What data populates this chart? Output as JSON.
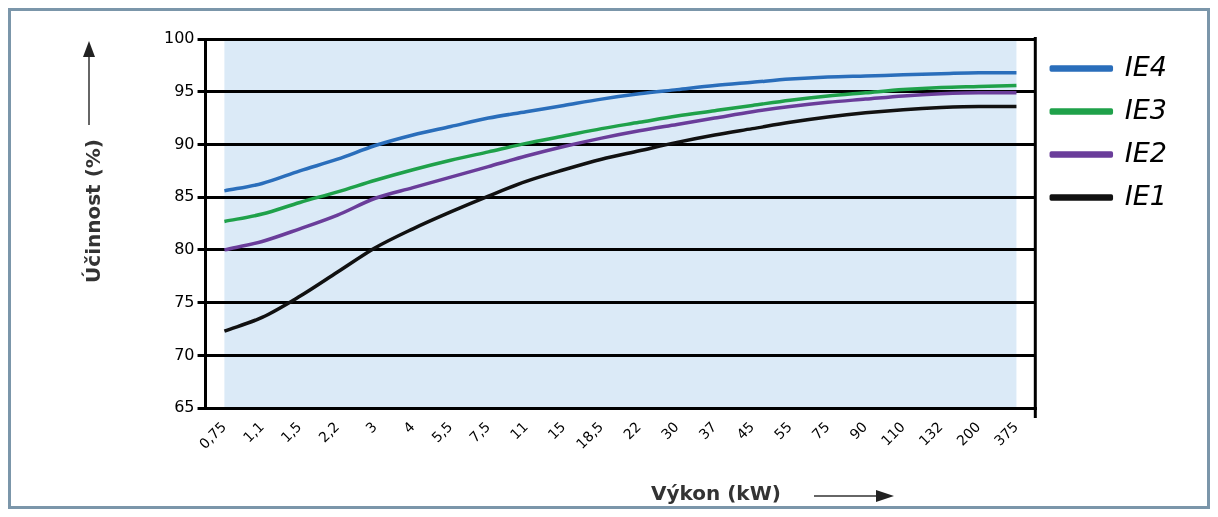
{
  "chart_data": {
    "type": "line",
    "xlabel": "Výkon (kW)",
    "ylabel": "Účinnost (%)",
    "categories": [
      "0,75",
      "1,1",
      "1,5",
      "2,2",
      "3",
      "4",
      "5,5",
      "7,5",
      "11",
      "15",
      "18,5",
      "22",
      "30",
      "37",
      "45",
      "55",
      "75",
      "90",
      "110",
      "132",
      "200",
      "375"
    ],
    "series": [
      {
        "name": "IE4",
        "color": "#2a6ebb",
        "values": [
          85.6,
          86.3,
          87.5,
          88.6,
          89.9,
          90.9,
          91.7,
          92.5,
          93.1,
          93.7,
          94.3,
          94.8,
          95.2,
          95.6,
          95.9,
          96.2,
          96.4,
          96.5,
          96.6,
          96.7,
          96.8,
          96.8
        ]
      },
      {
        "name": "IE3",
        "color": "#1fa14a",
        "values": [
          82.7,
          83.4,
          84.5,
          85.5,
          86.6,
          87.6,
          88.5,
          89.3,
          90.1,
          90.8,
          91.5,
          92.1,
          92.7,
          93.2,
          93.7,
          94.2,
          94.6,
          94.9,
          95.2,
          95.4,
          95.5,
          95.6
        ]
      },
      {
        "name": "IE2",
        "color": "#6a3d9a",
        "values": [
          80.0,
          80.8,
          82.0,
          83.3,
          84.9,
          85.9,
          86.9,
          87.9,
          88.9,
          89.8,
          90.6,
          91.3,
          91.9,
          92.5,
          93.1,
          93.6,
          94.0,
          94.3,
          94.6,
          94.8,
          94.9,
          94.9
        ]
      },
      {
        "name": "IE1",
        "color": "#111111",
        "values": [
          72.3,
          73.6,
          75.6,
          77.9,
          80.2,
          82.0,
          83.6,
          85.1,
          86.5,
          87.6,
          88.6,
          89.4,
          90.2,
          90.9,
          91.5,
          92.1,
          92.6,
          93.0,
          93.3,
          93.5,
          93.6,
          93.6
        ]
      }
    ],
    "ylim": [
      65,
      100
    ],
    "yticks": [
      65,
      70,
      75,
      80,
      85,
      90,
      95,
      100
    ],
    "bands": [
      {
        "axis": "x",
        "from": "0,75",
        "to": "375",
        "color": "#dbeaf7"
      }
    ],
    "grid": "y",
    "legend": "right",
    "marker": "none",
    "line_style": "solid"
  }
}
